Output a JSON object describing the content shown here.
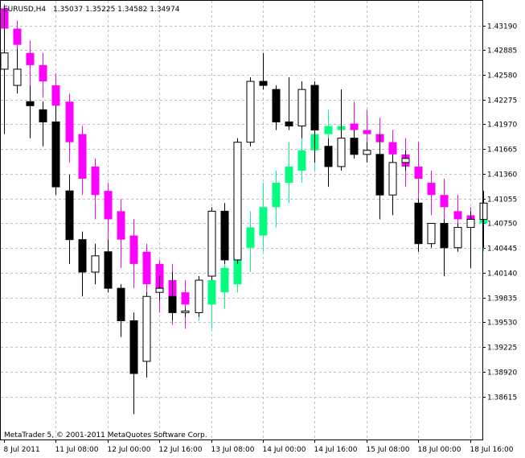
{
  "window": {
    "symbol_label": "EURUSD,H4",
    "ohlc_label": "1.35037 1.35225 1.34582 1.34974",
    "copyright": "MetaTrader 5, © 2001-2011 MetaQuotes Software Corp."
  },
  "colors": {
    "background": "#ffffff",
    "frame": "#000000",
    "grid": "#c0c0c0",
    "bull_candle_fill": "#ffffff",
    "bear_candle_fill": "#000000",
    "indicator_up": "#00ff80",
    "indicator_down": "#ff00ff"
  },
  "chart_data": {
    "type": "candlestick",
    "y_axis": {
      "min": 1.3835,
      "max": 1.4345,
      "ticks": [
        "1.43190",
        "1.42885",
        "1.42580",
        "1.42275",
        "1.41970",
        "1.41665",
        "1.41360",
        "1.41055",
        "1.40750",
        "1.40445",
        "1.40140",
        "1.39835",
        "1.39530",
        "1.39225",
        "1.38920",
        "1.38615"
      ]
    },
    "x_axis": {
      "ticks": [
        {
          "label": "8 Jul 2011",
          "index": 0
        },
        {
          "label": "11 Jul 08:00",
          "index": 4
        },
        {
          "label": "12 Jul 00:00",
          "index": 8
        },
        {
          "label": "12 Jul 16:00",
          "index": 12
        },
        {
          "label": "13 Jul 08:00",
          "index": 16
        },
        {
          "label": "14 Jul 00:00",
          "index": 20
        },
        {
          "label": "14 Jul 16:00",
          "index": 24
        },
        {
          "label": "15 Jul 08:00",
          "index": 28
        },
        {
          "label": "18 Jul 00:00",
          "index": 32
        },
        {
          "label": "18 Jul 16:00",
          "index": 36
        }
      ]
    },
    "grid": true,
    "candles": [
      {
        "o": 1.4265,
        "h": 1.434,
        "l": 1.4185,
        "c": 1.4285
      },
      {
        "o": 1.4245,
        "h": 1.429,
        "l": 1.4235,
        "c": 1.4265
      },
      {
        "o": 1.4225,
        "h": 1.4245,
        "l": 1.418,
        "c": 1.422
      },
      {
        "o": 1.4215,
        "h": 1.4225,
        "l": 1.417,
        "c": 1.42
      },
      {
        "o": 1.42,
        "h": 1.422,
        "l": 1.411,
        "c": 1.412
      },
      {
        "o": 1.4115,
        "h": 1.4135,
        "l": 1.4025,
        "c": 1.4055
      },
      {
        "o": 1.4055,
        "h": 1.4065,
        "l": 1.3985,
        "c": 1.4015
      },
      {
        "o": 1.4015,
        "h": 1.405,
        "l": 1.4,
        "c": 1.4035
      },
      {
        "o": 1.404,
        "h": 1.4055,
        "l": 1.399,
        "c": 1.3995
      },
      {
        "o": 1.3995,
        "h": 1.4,
        "l": 1.3935,
        "c": 1.3955
      },
      {
        "o": 1.3955,
        "h": 1.3965,
        "l": 1.384,
        "c": 1.389
      },
      {
        "o": 1.3905,
        "h": 1.399,
        "l": 1.3885,
        "c": 1.3985
      },
      {
        "o": 1.399,
        "h": 1.401,
        "l": 1.398,
        "c": 1.3995
      },
      {
        "o": 1.3985,
        "h": 1.4015,
        "l": 1.3955,
        "c": 1.3965
      },
      {
        "o": 1.3965,
        "h": 1.397,
        "l": 1.396,
        "c": 1.3967
      },
      {
        "o": 1.3965,
        "h": 1.401,
        "l": 1.396,
        "c": 1.4005
      },
      {
        "o": 1.401,
        "h": 1.4095,
        "l": 1.4005,
        "c": 1.409
      },
      {
        "o": 1.409,
        "h": 1.41,
        "l": 1.4025,
        "c": 1.403
      },
      {
        "o": 1.403,
        "h": 1.418,
        "l": 1.4025,
        "c": 1.4175
      },
      {
        "o": 1.4175,
        "h": 1.4255,
        "l": 1.417,
        "c": 1.425
      },
      {
        "o": 1.425,
        "h": 1.4285,
        "l": 1.424,
        "c": 1.4245
      },
      {
        "o": 1.424,
        "h": 1.4245,
        "l": 1.419,
        "c": 1.42
      },
      {
        "o": 1.42,
        "h": 1.4255,
        "l": 1.419,
        "c": 1.4195
      },
      {
        "o": 1.4195,
        "h": 1.425,
        "l": 1.418,
        "c": 1.424
      },
      {
        "o": 1.4245,
        "h": 1.425,
        "l": 1.415,
        "c": 1.419
      },
      {
        "o": 1.417,
        "h": 1.418,
        "l": 1.412,
        "c": 1.4145
      },
      {
        "o": 1.4145,
        "h": 1.424,
        "l": 1.414,
        "c": 1.418
      },
      {
        "o": 1.418,
        "h": 1.419,
        "l": 1.4155,
        "c": 1.416
      },
      {
        "o": 1.416,
        "h": 1.4175,
        "l": 1.415,
        "c": 1.4165
      },
      {
        "o": 1.416,
        "h": 1.4185,
        "l": 1.408,
        "c": 1.411
      },
      {
        "o": 1.411,
        "h": 1.416,
        "l": 1.4085,
        "c": 1.415
      },
      {
        "o": 1.415,
        "h": 1.4165,
        "l": 1.414,
        "c": 1.4155
      },
      {
        "o": 1.41,
        "h": 1.4105,
        "l": 1.404,
        "c": 1.405
      },
      {
        "o": 1.405,
        "h": 1.4075,
        "l": 1.4045,
        "c": 1.4075
      },
      {
        "o": 1.4075,
        "h": 1.408,
        "l": 1.401,
        "c": 1.4045
      },
      {
        "o": 1.4045,
        "h": 1.4075,
        "l": 1.404,
        "c": 1.407
      },
      {
        "o": 1.407,
        "h": 1.409,
        "l": 1.402,
        "c": 1.408
      },
      {
        "o": 1.408,
        "h": 1.4115,
        "l": 1.4045,
        "c": 1.41
      }
    ],
    "indicator": {
      "name": "",
      "up_color": "#00ff80",
      "down_color": "#ff00ff",
      "bars": [
        {
          "o": 1.434,
          "h": 1.4345,
          "l": 1.428,
          "c": 1.4315,
          "dir": "down"
        },
        {
          "o": 1.4315,
          "h": 1.4325,
          "l": 1.427,
          "c": 1.4295,
          "dir": "down"
        },
        {
          "o": 1.4285,
          "h": 1.43,
          "l": 1.424,
          "c": 1.427,
          "dir": "down"
        },
        {
          "o": 1.427,
          "h": 1.4285,
          "l": 1.423,
          "c": 1.425,
          "dir": "down"
        },
        {
          "o": 1.4245,
          "h": 1.426,
          "l": 1.419,
          "c": 1.422,
          "dir": "down"
        },
        {
          "o": 1.4225,
          "h": 1.4235,
          "l": 1.415,
          "c": 1.4175,
          "dir": "down"
        },
        {
          "o": 1.4185,
          "h": 1.4195,
          "l": 1.411,
          "c": 1.413,
          "dir": "down"
        },
        {
          "o": 1.4145,
          "h": 1.4155,
          "l": 1.408,
          "c": 1.411,
          "dir": "down"
        },
        {
          "o": 1.4115,
          "h": 1.4125,
          "l": 1.405,
          "c": 1.408,
          "dir": "down"
        },
        {
          "o": 1.409,
          "h": 1.4105,
          "l": 1.402,
          "c": 1.4055,
          "dir": "down"
        },
        {
          "o": 1.406,
          "h": 1.408,
          "l": 1.3995,
          "c": 1.4025,
          "dir": "down"
        },
        {
          "o": 1.404,
          "h": 1.405,
          "l": 1.3975,
          "c": 1.4,
          "dir": "down"
        },
        {
          "o": 1.4025,
          "h": 1.403,
          "l": 1.3965,
          "c": 1.3995,
          "dir": "down"
        },
        {
          "o": 1.4005,
          "h": 1.4025,
          "l": 1.395,
          "c": 1.3985,
          "dir": "down"
        },
        {
          "o": 1.399,
          "h": 1.4005,
          "l": 1.3945,
          "c": 1.3975,
          "dir": "down"
        },
        {
          "o": 1.3975,
          "h": 1.401,
          "l": 1.3955,
          "c": 1.399,
          "dir": "up"
        },
        {
          "o": 1.3975,
          "h": 1.402,
          "l": 1.3945,
          "c": 1.4005,
          "dir": "up"
        },
        {
          "o": 1.399,
          "h": 1.404,
          "l": 1.397,
          "c": 1.402,
          "dir": "up"
        },
        {
          "o": 1.4,
          "h": 1.406,
          "l": 1.399,
          "c": 1.403,
          "dir": "up"
        },
        {
          "o": 1.4045,
          "h": 1.409,
          "l": 1.4015,
          "c": 1.407,
          "dir": "up"
        },
        {
          "o": 1.406,
          "h": 1.4125,
          "l": 1.404,
          "c": 1.4095,
          "dir": "up"
        },
        {
          "o": 1.4095,
          "h": 1.414,
          "l": 1.407,
          "c": 1.4125,
          "dir": "up"
        },
        {
          "o": 1.4125,
          "h": 1.4175,
          "l": 1.41,
          "c": 1.4145,
          "dir": "up"
        },
        {
          "o": 1.414,
          "h": 1.4185,
          "l": 1.4125,
          "c": 1.4165,
          "dir": "up"
        },
        {
          "o": 1.4165,
          "h": 1.4205,
          "l": 1.414,
          "c": 1.4185,
          "dir": "up"
        },
        {
          "o": 1.4185,
          "h": 1.4215,
          "l": 1.416,
          "c": 1.4195,
          "dir": "up"
        },
        {
          "o": 1.419,
          "h": 1.422,
          "l": 1.417,
          "c": 1.4195,
          "dir": "up"
        },
        {
          "o": 1.4198,
          "h": 1.4225,
          "l": 1.416,
          "c": 1.419,
          "dir": "down"
        },
        {
          "o": 1.419,
          "h": 1.4215,
          "l": 1.416,
          "c": 1.4185,
          "dir": "down"
        },
        {
          "o": 1.4185,
          "h": 1.4205,
          "l": 1.415,
          "c": 1.4175,
          "dir": "down"
        },
        {
          "o": 1.4175,
          "h": 1.419,
          "l": 1.413,
          "c": 1.416,
          "dir": "down"
        },
        {
          "o": 1.416,
          "h": 1.418,
          "l": 1.412,
          "c": 1.4145,
          "dir": "down"
        },
        {
          "o": 1.4145,
          "h": 1.4175,
          "l": 1.4105,
          "c": 1.413,
          "dir": "down"
        },
        {
          "o": 1.4125,
          "h": 1.414,
          "l": 1.4085,
          "c": 1.411,
          "dir": "down"
        },
        {
          "o": 1.411,
          "h": 1.413,
          "l": 1.4075,
          "c": 1.4095,
          "dir": "down"
        },
        {
          "o": 1.409,
          "h": 1.411,
          "l": 1.406,
          "c": 1.408,
          "dir": "down"
        },
        {
          "o": 1.4085,
          "h": 1.4095,
          "l": 1.4065,
          "c": 1.408,
          "dir": "down"
        },
        {
          "o": 1.408,
          "h": 1.4095,
          "l": 1.404,
          "c": 1.4075,
          "dir": "up"
        }
      ]
    }
  }
}
